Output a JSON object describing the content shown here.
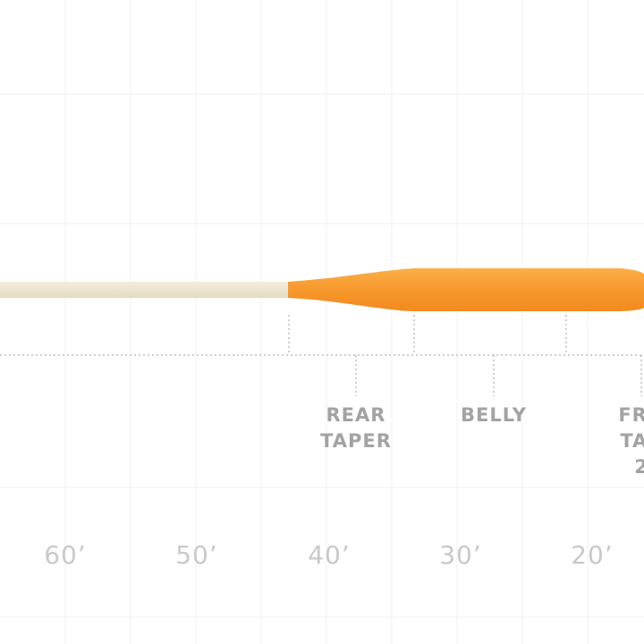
{
  "diagram": {
    "zones": [
      {
        "id": "rear-taper",
        "label_lines": [
          "REAR",
          "TAPER"
        ]
      },
      {
        "id": "belly",
        "label_lines": [
          "BELLY"
        ]
      },
      {
        "id": "front-taper",
        "label_lines": [
          "FRO",
          "TAP",
          "2"
        ]
      }
    ],
    "length_ticks": [
      "60’",
      "50’",
      "40’",
      "30’",
      "20’"
    ],
    "colors": {
      "running_line": "#ece5cc",
      "head": "#f7982c",
      "head_highlight": "#fbb04a",
      "grid": "#f1f1f1",
      "guide": "#b0b0b0",
      "label": "#a3a3a3",
      "tick_label": "#c9c9c9"
    }
  }
}
